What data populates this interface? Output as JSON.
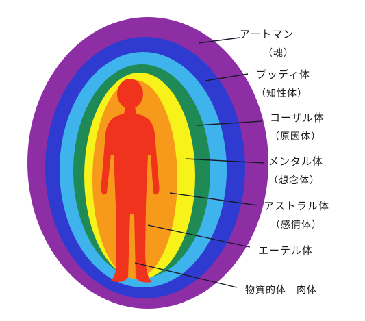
{
  "diagram": {
    "layers": [
      {
        "id": "atman",
        "name": "アートマン",
        "sub": "（魂）",
        "color": "#8e2ea5"
      },
      {
        "id": "buddhi",
        "name": "ブッディ体",
        "sub": "（知性体）",
        "color": "#2f3bd0"
      },
      {
        "id": "causal",
        "name": "コーザル体",
        "sub": "（原因体）",
        "color": "#3fb4ec"
      },
      {
        "id": "mental",
        "name": "メンタル体",
        "sub": "（想念体）",
        "color": "#1f8a55"
      },
      {
        "id": "astral",
        "name": "アストラル体",
        "sub": "（感情体）",
        "color": "#f6f21a"
      },
      {
        "id": "etheric",
        "name": "エーテル体",
        "sub": "",
        "color": "#f79a1b"
      },
      {
        "id": "physical",
        "name": "物質的体　肉体",
        "sub": "",
        "color": "#f0331c"
      }
    ]
  }
}
